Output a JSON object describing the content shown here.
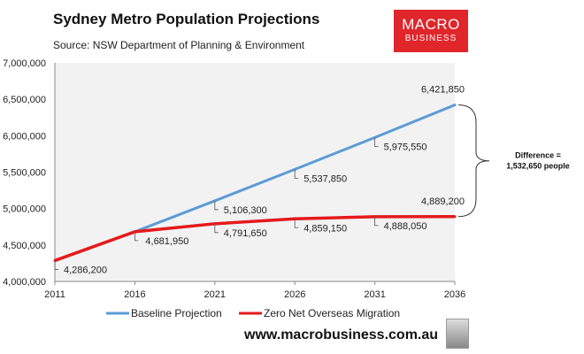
{
  "chart_data": {
    "type": "line",
    "title": "Sydney Metro Population Projections",
    "subtitle": "Source: NSW Department of Planning & Environment",
    "x": [
      2011,
      2016,
      2021,
      2026,
      2031,
      2036
    ],
    "x_tick_labels": [
      "2011",
      "2016",
      "2021",
      "2026",
      "2031",
      "2036"
    ],
    "y_tick_labels": [
      "4,000,000",
      "4,500,000",
      "5,000,000",
      "5,500,000",
      "6,000,000",
      "6,500,000",
      "7,000,000"
    ],
    "ylim": [
      4000000,
      7000000
    ],
    "xlim": [
      2011,
      2036
    ],
    "grid": false,
    "legend": "bottom",
    "series": [
      {
        "name": "Baseline Projection",
        "color": "#5b9bd5",
        "values": [
          null,
          4681950,
          5106300,
          5537850,
          5975550,
          6421850
        ],
        "labels": [
          "",
          "4,681,950",
          "5,106,300",
          "5,537,850",
          "5,975,550",
          "6,421,850"
        ]
      },
      {
        "name": "Zero Net Overseas Migration",
        "color": "#e41a1c",
        "values": [
          4286200,
          4681950,
          4791650,
          4859150,
          4888050,
          4889200
        ],
        "labels": [
          "4,286,200",
          "",
          "4,791,650",
          "4,859,150",
          "4,888,050",
          "4,889,200"
        ]
      }
    ],
    "annotation": [
      "Difference =",
      "1,532,650 people"
    ]
  },
  "logo": {
    "line1": "MACRO",
    "line2": "BUSINESS"
  },
  "website": "www.macrobusiness.com.au"
}
